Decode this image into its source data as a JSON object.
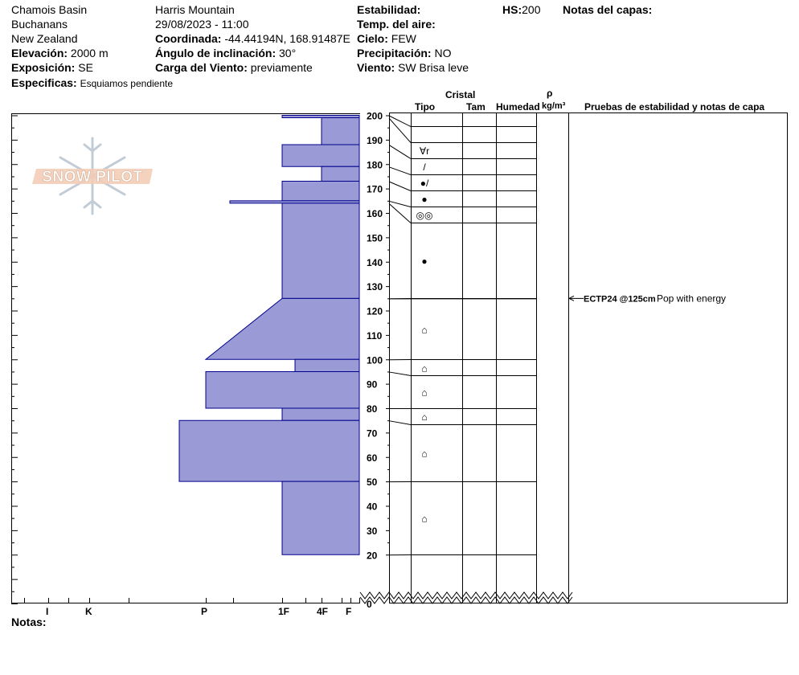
{
  "header": {
    "location_1": "Chamois Basin",
    "location_2": "Buchanans",
    "location_3": "New Zealand",
    "elevation_label": "Elevación:",
    "elevation_value": "2000 m",
    "aspect_label": "Exposición:",
    "aspect_value": "SE",
    "specifics_label": "Especificas:",
    "specifics_value": "Esquiamos pendiente",
    "site": "Harris Mountain",
    "datetime": "29/08/2023 - 11:00",
    "coord_label": "Coordinada:",
    "coord_value": "-44.44194N, 168.91487E",
    "slope_label": "Ángulo de inclinación:",
    "slope_value": "30°",
    "wind_load_label": "Carga del Viento:",
    "wind_load_value": "previamente",
    "stability_label": "Estabilidad:",
    "air_temp_label": "Temp. del aire:",
    "sky_label": "Cielo:",
    "sky_value": "FEW",
    "precip_label": "Precipitación:",
    "precip_value": "NO",
    "wind_label": "Viento:",
    "wind_value": "SW Brisa leve",
    "hs_label": "HS:",
    "hs_value": "200",
    "notes_layers_label": "Notas del capas:"
  },
  "columns": {
    "crystal": "Cristal",
    "type": "Tipo",
    "size": "Tam",
    "moisture": "Humedad",
    "rho": "ρ",
    "density_unit": "kg/m³",
    "stability_header": "Pruebas de estabilidad y notas de capa"
  },
  "hardness_axis": {
    "labels": [
      "I",
      "K",
      "P",
      "1F",
      "4F",
      "F"
    ]
  },
  "notes_label": "Notas:",
  "logo_text": "SNOW PILOT",
  "colors": {
    "profile_fill": "#9a9ad6",
    "profile_stroke": "#00008b"
  },
  "chart_data": {
    "type": "snow-profile",
    "height_axis": {
      "min": 0,
      "max": 200,
      "ticks": [
        20,
        30,
        40,
        50,
        60,
        70,
        80,
        90,
        100,
        110,
        120,
        130,
        140,
        150,
        160,
        170,
        180,
        190,
        200,
        0
      ]
    },
    "hardness_scale": [
      "F",
      "4F",
      "1F",
      "P",
      "K",
      "I"
    ],
    "layers": [
      {
        "top": 200,
        "bottom": 199,
        "hardness_top": "1F",
        "hardness_bottom": "1F",
        "grain": "∀r"
      },
      {
        "top": 199,
        "bottom": 188,
        "hardness_top": "4F",
        "hardness_bottom": "4F",
        "grain": "∀r"
      },
      {
        "top": 188,
        "bottom": 179,
        "hardness_top": "1F",
        "hardness_bottom": "1F",
        "grain": "/"
      },
      {
        "top": 179,
        "bottom": 173,
        "hardness_top": "4F",
        "hardness_bottom": "4F",
        "grain": "●/"
      },
      {
        "top": 173,
        "bottom": 165,
        "hardness_top": "1F",
        "hardness_bottom": "1F",
        "grain": "●"
      },
      {
        "top": 165,
        "bottom": 164,
        "hardness_top": "P+",
        "hardness_bottom": "P+",
        "grain": "◎◎"
      },
      {
        "top": 164,
        "bottom": 125,
        "hardness_top": "1F",
        "hardness_bottom": "1F",
        "grain": "●"
      },
      {
        "top": 125,
        "bottom": 100,
        "hardness_top": "1F",
        "hardness_bottom": "P",
        "grain": "⌂"
      },
      {
        "top": 100,
        "bottom": 95,
        "hardness_top": "1F-",
        "hardness_bottom": "1F-",
        "grain": "⌂"
      },
      {
        "top": 95,
        "bottom": 80,
        "hardness_top": "P",
        "hardness_bottom": "P",
        "grain": "⌂"
      },
      {
        "top": 80,
        "bottom": 75,
        "hardness_top": "1F",
        "hardness_bottom": "1F",
        "grain": "⌂"
      },
      {
        "top": 75,
        "bottom": 50,
        "hardness_top": "P-",
        "hardness_bottom": "P-",
        "grain": "⌂"
      },
      {
        "top": 50,
        "bottom": 20,
        "hardness_top": "1F",
        "hardness_bottom": "1F",
        "grain": "⌂"
      }
    ],
    "stability_tests": [
      {
        "height": 125,
        "code": "ECTP24 @125cm",
        "note": "Pop with energy"
      }
    ]
  }
}
